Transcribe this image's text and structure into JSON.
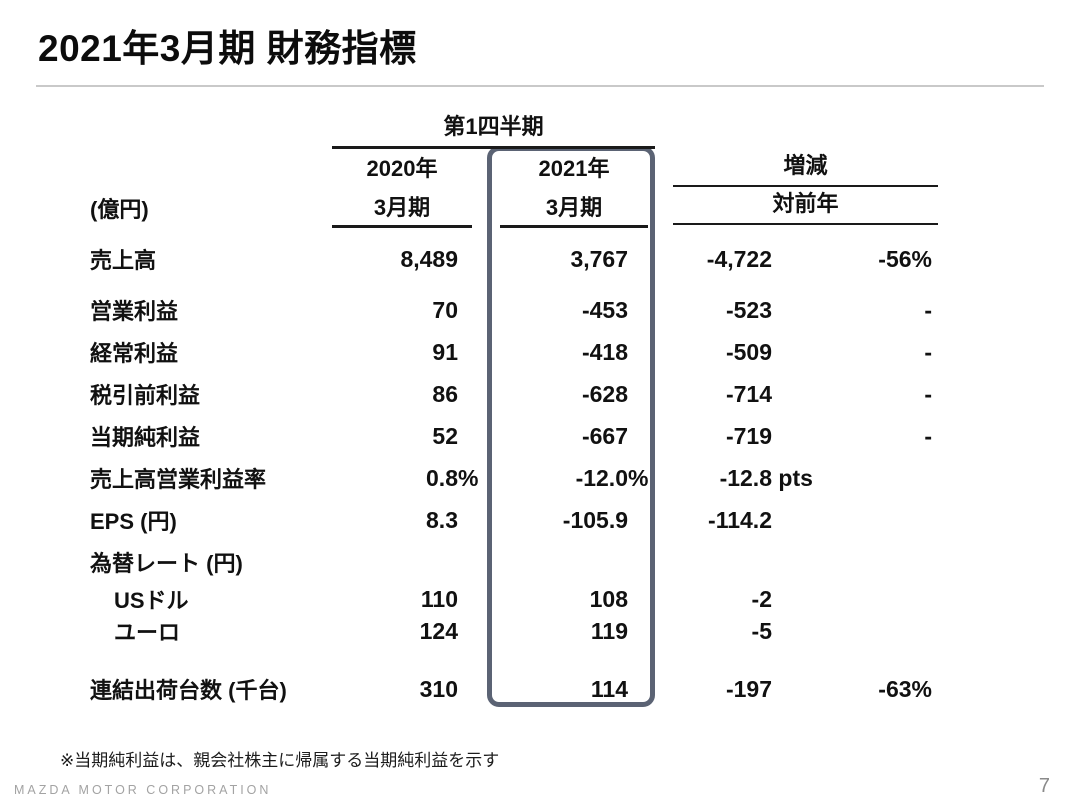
{
  "slide": {
    "title": "2021年3月期 財務指標",
    "footnote": "※当期純利益は、親会社株主に帰属する当期純利益を示す",
    "footer_company": "MAZDA MOTOR CORPORATION",
    "page_number": "7"
  },
  "table": {
    "unit_label": "(億円)",
    "group_header": "第1四半期",
    "col_fy2020": {
      "line1": "2020年",
      "line2": "3月期"
    },
    "col_fy2021": {
      "line1": "2021年",
      "line2": "3月期"
    },
    "col_delta": {
      "line1": "増減",
      "line2": "対前年"
    },
    "rows": [
      {
        "label": "売上高",
        "indent": false,
        "fy2020": "8,489",
        "fy2020_suffix": "",
        "fy2021": "3,767",
        "fy2021_suffix": "",
        "delta": "-4,722",
        "delta_suffix": "",
        "pct": "-56%"
      },
      {
        "label": "営業利益",
        "indent": false,
        "fy2020": "70",
        "fy2020_suffix": "",
        "fy2021": "-453",
        "fy2021_suffix": "",
        "delta": "-523",
        "delta_suffix": "",
        "pct": "-"
      },
      {
        "label": "経常利益",
        "indent": false,
        "fy2020": "91",
        "fy2020_suffix": "",
        "fy2021": "-418",
        "fy2021_suffix": "",
        "delta": "-509",
        "delta_suffix": "",
        "pct": "-"
      },
      {
        "label": "税引前利益",
        "indent": false,
        "fy2020": "86",
        "fy2020_suffix": "",
        "fy2021": "-628",
        "fy2021_suffix": "",
        "delta": "-714",
        "delta_suffix": "",
        "pct": "-"
      },
      {
        "label": "当期純利益",
        "indent": false,
        "fy2020": "52",
        "fy2020_suffix": "",
        "fy2021": "-667",
        "fy2021_suffix": "",
        "delta": "-719",
        "delta_suffix": "",
        "pct": "-"
      },
      {
        "label": "売上高営業利益率",
        "indent": false,
        "fy2020": "0.8",
        "fy2020_suffix": "%",
        "fy2021": "-12.0",
        "fy2021_suffix": "%",
        "delta": "-12.8",
        "delta_suffix": " pts",
        "pct": ""
      },
      {
        "label": "EPS (円)",
        "indent": false,
        "fy2020": "8.3",
        "fy2020_suffix": "",
        "fy2021": "-105.9",
        "fy2021_suffix": "",
        "delta": "-114.2",
        "delta_suffix": "",
        "pct": ""
      },
      {
        "label": "為替レート (円)",
        "indent": false,
        "fy2020": "",
        "fy2020_suffix": "",
        "fy2021": "",
        "fy2021_suffix": "",
        "delta": "",
        "delta_suffix": "",
        "pct": ""
      },
      {
        "label": "USドル",
        "indent": true,
        "fy2020": "110",
        "fy2020_suffix": "",
        "fy2021": "108",
        "fy2021_suffix": "",
        "delta": "-2",
        "delta_suffix": "",
        "pct": ""
      },
      {
        "label": "ユーロ",
        "indent": true,
        "fy2020": "124",
        "fy2020_suffix": "",
        "fy2021": "119",
        "fy2021_suffix": "",
        "delta": "-5",
        "delta_suffix": "",
        "pct": ""
      },
      {
        "label": "連結出荷台数 (千台)",
        "indent": false,
        "fy2020": "310",
        "fy2020_suffix": "",
        "fy2021": "114",
        "fy2021_suffix": "",
        "delta": "-197",
        "delta_suffix": "",
        "pct": "-63%"
      }
    ]
  },
  "colors": {
    "text": "#111111",
    "highlight_box_border": "#5b6374",
    "title_rule": "#c9c9c9",
    "header_rule": "#1a1a1a",
    "footer_text": "#a3a3a3"
  }
}
